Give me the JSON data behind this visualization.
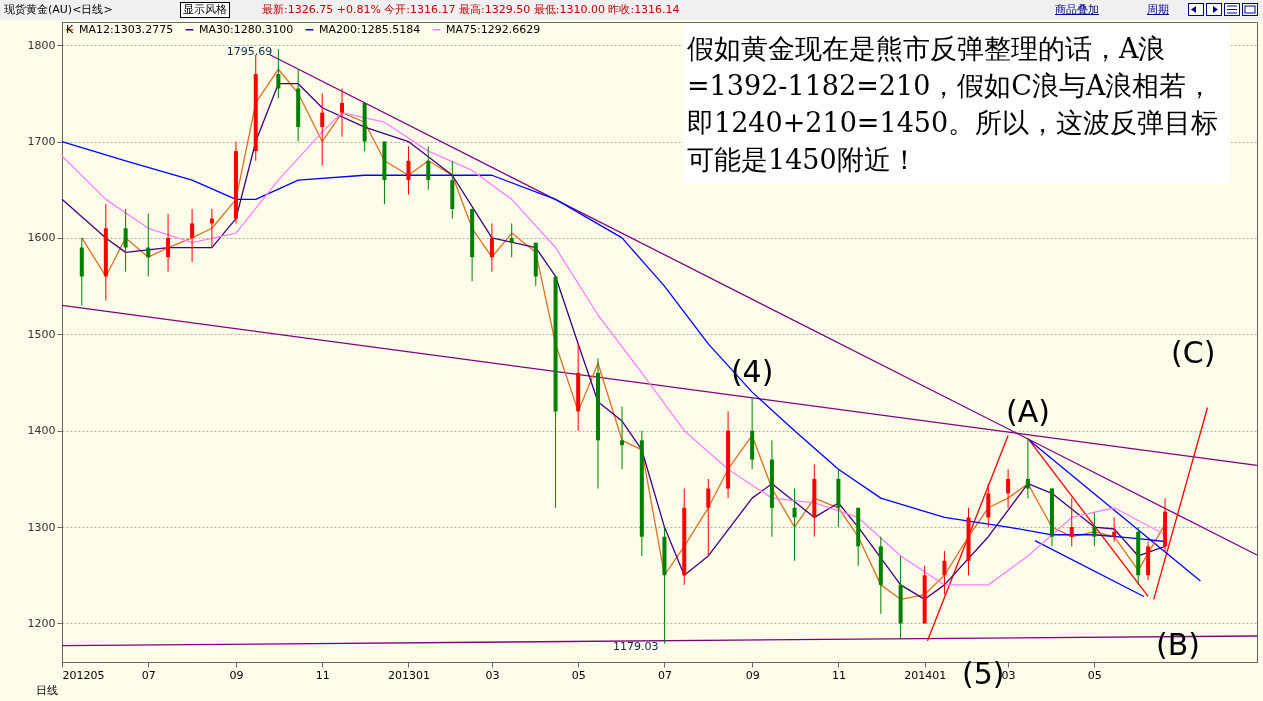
{
  "chart_data": {
    "type": "candlestick",
    "title": "现货黄金(AU)<日线>",
    "subtitle": "最新:1326.75 +0.81%  今开:1316.17  最高:1329.50  最低:1310.00  昨收:1316.14",
    "x": [
      "2012-05-15",
      "2012-06-01",
      "2012-06-15",
      "2012-07-01",
      "2012-07-15",
      "2012-08-01",
      "2012-08-15",
      "2012-09-01",
      "2012-09-15",
      "2012-10-01",
      "2012-10-15",
      "2012-11-01",
      "2012-11-15",
      "2012-12-01",
      "2012-12-15",
      "2013-01-01",
      "2013-01-15",
      "2013-02-01",
      "2013-02-15",
      "2013-03-01",
      "2013-03-15",
      "2013-04-01",
      "2013-04-15",
      "2013-05-01",
      "2013-05-15",
      "2013-06-01",
      "2013-06-15",
      "2013-07-01",
      "2013-07-15",
      "2013-08-01",
      "2013-08-15",
      "2013-09-01",
      "2013-09-15",
      "2013-10-01",
      "2013-10-15",
      "2013-11-01",
      "2013-11-15",
      "2013-12-01",
      "2013-12-15",
      "2014-01-01",
      "2014-01-15",
      "2014-02-01",
      "2014-02-15",
      "2014-03-01",
      "2014-03-15",
      "2014-04-01",
      "2014-04-15",
      "2014-05-01",
      "2014-05-15",
      "2014-06-01",
      "2014-06-08",
      "2014-06-20"
    ],
    "ohlc": [
      [
        1590,
        1600,
        1530,
        1560
      ],
      [
        1560,
        1635,
        1535,
        1610
      ],
      [
        1610,
        1630,
        1565,
        1590
      ],
      [
        1590,
        1625,
        1560,
        1580
      ],
      [
        1580,
        1625,
        1565,
        1600
      ],
      [
        1600,
        1630,
        1575,
        1615
      ],
      [
        1615,
        1630,
        1590,
        1620
      ],
      [
        1620,
        1700,
        1615,
        1690
      ],
      [
        1690,
        1790,
        1680,
        1770
      ],
      [
        1770,
        1795.69,
        1745,
        1755
      ],
      [
        1755,
        1775,
        1700,
        1715
      ],
      [
        1715,
        1750,
        1675,
        1730
      ],
      [
        1730,
        1755,
        1705,
        1740
      ],
      [
        1740,
        1740,
        1690,
        1700
      ],
      [
        1700,
        1700,
        1635,
        1660
      ],
      [
        1660,
        1695,
        1645,
        1680
      ],
      [
        1680,
        1695,
        1650,
        1660
      ],
      [
        1660,
        1680,
        1620,
        1630
      ],
      [
        1630,
        1630,
        1555,
        1580
      ],
      [
        1580,
        1615,
        1565,
        1600
      ],
      [
        1600,
        1615,
        1580,
        1595
      ],
      [
        1595,
        1595,
        1550,
        1560
      ],
      [
        1560,
        1560,
        1320,
        1420
      ],
      [
        1420,
        1490,
        1400,
        1460
      ],
      [
        1460,
        1475,
        1340,
        1390
      ],
      [
        1390,
        1425,
        1360,
        1385
      ],
      [
        1390,
        1400,
        1270,
        1290
      ],
      [
        1290,
        1300,
        1179.03,
        1250
      ],
      [
        1250,
        1340,
        1240,
        1320
      ],
      [
        1320,
        1350,
        1270,
        1340
      ],
      [
        1340,
        1420,
        1330,
        1400
      ],
      [
        1400,
        1434,
        1360,
        1370
      ],
      [
        1370,
        1390,
        1290,
        1320
      ],
      [
        1320,
        1340,
        1265,
        1310
      ],
      [
        1310,
        1365,
        1290,
        1350
      ],
      [
        1350,
        1360,
        1300,
        1320
      ],
      [
        1320,
        1320,
        1260,
        1280
      ],
      [
        1280,
        1290,
        1210,
        1240
      ],
      [
        1240,
        1270,
        1185,
        1200
      ],
      [
        1200,
        1260,
        1200,
        1250
      ],
      [
        1250,
        1275,
        1230,
        1265
      ],
      [
        1265,
        1320,
        1250,
        1310
      ],
      [
        1310,
        1345,
        1300,
        1335
      ],
      [
        1335,
        1360,
        1320,
        1350
      ],
      [
        1350,
        1392,
        1330,
        1340
      ],
      [
        1340,
        1340,
        1280,
        1290
      ],
      [
        1290,
        1330,
        1280,
        1300
      ],
      [
        1300,
        1315,
        1280,
        1290
      ],
      [
        1290,
        1310,
        1285,
        1295
      ],
      [
        1295,
        1300,
        1240,
        1250
      ],
      [
        1250,
        1285,
        1245,
        1280
      ],
      [
        1280,
        1330,
        1275,
        1316
      ]
    ],
    "series": [
      {
        "type": "line",
        "name": "MA12:1303.2775",
        "color": "#e07020",
        "x": [
          "2012-05-15",
          "2012-06-01",
          "2012-06-15",
          "2012-07-01",
          "2012-07-15",
          "2012-08-01",
          "2012-08-15",
          "2012-09-01",
          "2012-09-15",
          "2012-10-01",
          "2012-10-15",
          "2012-11-01",
          "2012-11-15",
          "2012-12-01",
          "2012-12-15",
          "2013-01-01",
          "2013-01-15",
          "2013-02-01",
          "2013-02-15",
          "2013-03-01",
          "2013-03-15",
          "2013-04-01",
          "2013-04-15",
          "2013-05-01",
          "2013-05-15",
          "2013-06-01",
          "2013-06-15",
          "2013-07-01",
          "2013-07-15",
          "2013-08-01",
          "2013-08-15",
          "2013-09-01",
          "2013-09-15",
          "2013-10-01",
          "2013-10-15",
          "2013-11-01",
          "2013-11-15",
          "2013-12-01",
          "2013-12-15",
          "2014-01-01",
          "2014-01-15",
          "2014-02-01",
          "2014-02-15",
          "2014-03-01",
          "2014-03-15",
          "2014-04-01",
          "2014-04-15",
          "2014-05-01",
          "2014-05-15",
          "2014-06-01",
          "2014-06-20"
        ],
        "values": [
          1600,
          1560,
          1600,
          1580,
          1590,
          1600,
          1610,
          1640,
          1740,
          1775,
          1750,
          1700,
          1730,
          1720,
          1680,
          1665,
          1680,
          1665,
          1610,
          1580,
          1605,
          1585,
          1490,
          1420,
          1470,
          1390,
          1380,
          1250,
          1280,
          1320,
          1360,
          1395,
          1340,
          1300,
          1330,
          1320,
          1290,
          1240,
          1225,
          1230,
          1250,
          1290,
          1320,
          1330,
          1345,
          1300,
          1290,
          1295,
          1290,
          1255,
          1303
        ]
      },
      {
        "type": "line",
        "name": "MA30:1280.3100",
        "color": "#400080",
        "x": [
          "2012-05-01",
          "2012-06-01",
          "2012-06-15",
          "2012-07-15",
          "2012-08-15",
          "2012-09-01",
          "2012-09-15",
          "2012-10-01",
          "2012-10-15",
          "2012-11-01",
          "2012-12-01",
          "2013-01-01",
          "2013-02-01",
          "2013-03-01",
          "2013-04-01",
          "2013-04-15",
          "2013-05-01",
          "2013-05-15",
          "2013-06-01",
          "2013-06-15",
          "2013-07-01",
          "2013-07-15",
          "2013-08-01",
          "2013-09-01",
          "2013-09-15",
          "2013-10-15",
          "2013-11-01",
          "2013-11-15",
          "2013-12-15",
          "2014-01-01",
          "2014-01-15",
          "2014-02-15",
          "2014-03-15",
          "2014-04-01",
          "2014-05-01",
          "2014-05-15",
          "2014-06-01",
          "2014-06-20"
        ],
        "values": [
          1640,
          1600,
          1585,
          1590,
          1590,
          1620,
          1700,
          1760,
          1760,
          1735,
          1715,
          1700,
          1665,
          1600,
          1590,
          1560,
          1490,
          1430,
          1410,
          1380,
          1300,
          1250,
          1270,
          1330,
          1345,
          1310,
          1325,
          1300,
          1240,
          1225,
          1240,
          1290,
          1345,
          1335,
          1300,
          1298,
          1270,
          1280
        ]
      },
      {
        "type": "line",
        "name": "MA200:1285.5184",
        "color": "#0000ff",
        "x": [
          "2012-05-01",
          "2012-06-15",
          "2012-08-01",
          "2012-09-01",
          "2012-09-15",
          "2012-10-15",
          "2012-12-01",
          "2013-01-15",
          "2013-03-01",
          "2013-04-15",
          "2013-06-01",
          "2013-07-01",
          "2013-08-01",
          "2013-09-01",
          "2013-10-01",
          "2013-11-01",
          "2013-12-01",
          "2014-01-15",
          "2014-03-01",
          "2014-04-01",
          "2014-05-01",
          "2014-06-01",
          "2014-06-20"
        ],
        "values": [
          1700,
          1680,
          1660,
          1640,
          1640,
          1660,
          1665,
          1665,
          1665,
          1640,
          1600,
          1550,
          1490,
          1440,
          1400,
          1360,
          1330,
          1310,
          1300,
          1292,
          1292,
          1288,
          1285
        ]
      },
      {
        "type": "line",
        "name": "MA75:1292.6629",
        "color": "#ff80ff",
        "x": [
          "2012-05-01",
          "2012-06-01",
          "2012-07-01",
          "2012-08-01",
          "2012-09-01",
          "2012-10-01",
          "2012-11-01",
          "2012-11-15",
          "2012-12-15",
          "2013-01-15",
          "2013-02-15",
          "2013-03-15",
          "2013-04-15",
          "2013-05-15",
          "2013-06-15",
          "2013-07-15",
          "2013-08-15",
          "2013-09-15",
          "2013-10-15",
          "2013-11-15",
          "2013-12-15",
          "2014-01-15",
          "2014-02-15",
          "2014-03-15",
          "2014-04-15",
          "2014-05-15",
          "2014-06-20"
        ],
        "values": [
          1685,
          1640,
          1610,
          1595,
          1605,
          1660,
          1710,
          1730,
          1720,
          1690,
          1670,
          1640,
          1590,
          1520,
          1460,
          1400,
          1360,
          1330,
          1325,
          1310,
          1270,
          1240,
          1240,
          1270,
          1310,
          1320,
          1292
        ]
      },
      {
        "type": "line",
        "color": "#800080",
        "x": [
          "2012-09-25",
          "2014-08-24"
        ],
        "values": [
          1790,
          1271
        ]
      },
      {
        "type": "line",
        "color": "#800080",
        "x": [
          "2012-05-01",
          "2014-08-24"
        ],
        "values": [
          1530,
          1364
        ]
      },
      {
        "type": "line",
        "color": "#800080",
        "x": [
          "2012-05-01",
          "2014-08-24"
        ],
        "values": [
          1177,
          1187
        ]
      },
      {
        "type": "line",
        "color": "#ff0000",
        "x": [
          "2014-01-03",
          "2014-03-01"
        ],
        "values": [
          1182,
          1395
        ]
      },
      {
        "type": "line",
        "color": "#ff0000",
        "x": [
          "2014-03-15",
          "2014-06-08"
        ],
        "values": [
          1392,
          1228
        ]
      },
      {
        "type": "line",
        "color": "#ff0000",
        "x": [
          "2014-06-12",
          "2014-07-20"
        ],
        "values": [
          1225,
          1424
        ]
      },
      {
        "type": "line",
        "color": "#0000ff",
        "x": [
          "2014-03-16",
          "2014-07-15"
        ],
        "values": [
          1390,
          1244
        ]
      },
      {
        "type": "line",
        "color": "#0000ff",
        "x": [
          "2014-03-20",
          "2014-06-05"
        ],
        "values": [
          1286,
          1228
        ]
      }
    ],
    "xlim": [
      "2012-05-01",
      "2014-08-24"
    ],
    "xticks": [
      {
        "value": "2012-05-01",
        "label": "201205"
      },
      {
        "value": "2012-07-01",
        "label": "07"
      },
      {
        "value": "2012-09-01",
        "label": "09"
      },
      {
        "value": "2012-11-01",
        "label": "11"
      },
      {
        "value": "2013-01-01",
        "label": "201301"
      },
      {
        "value": "2013-03-01",
        "label": "03"
      },
      {
        "value": "2013-05-01",
        "label": "05"
      },
      {
        "value": "2013-07-01",
        "label": "07"
      },
      {
        "value": "2013-09-01",
        "label": "09"
      },
      {
        "value": "2013-11-01",
        "label": "11"
      },
      {
        "value": "2014-01-01",
        "label": "201401"
      },
      {
        "value": "2014-03-01",
        "label": "03"
      },
      {
        "value": "2014-05-01",
        "label": "05"
      }
    ],
    "ylim": [
      1160,
      1824
    ],
    "yticks": [
      1200,
      1300,
      1400,
      1500,
      1600,
      1700,
      1800
    ],
    "grid": "y",
    "legend": "top left",
    "marker": "none",
    "line_style": "solid",
    "annotations": [
      "假如黄金现在是熊市反弹整理的话，A浪=1392-1182=210，假如C浪与A浪相若，即1240+210=1450。所以，这波反弹目标可能是1450附近！",
      "显示风格",
      "K",
      "日线",
      "商品叠加",
      "周期",
      "(5)",
      "(B)",
      "(C)",
      {
        "text": "1795.69",
        "x": "2012-10-01",
        "y": 1795.69
      },
      {
        "text": "1179.03",
        "x": "2013-07-01",
        "y": 1179.03
      },
      {
        "text": "(4)",
        "x": "2013-09-01",
        "y": 1434
      },
      {
        "text": "(A)",
        "x": "2014-03-15",
        "y": 1392
      }
    ]
  }
}
